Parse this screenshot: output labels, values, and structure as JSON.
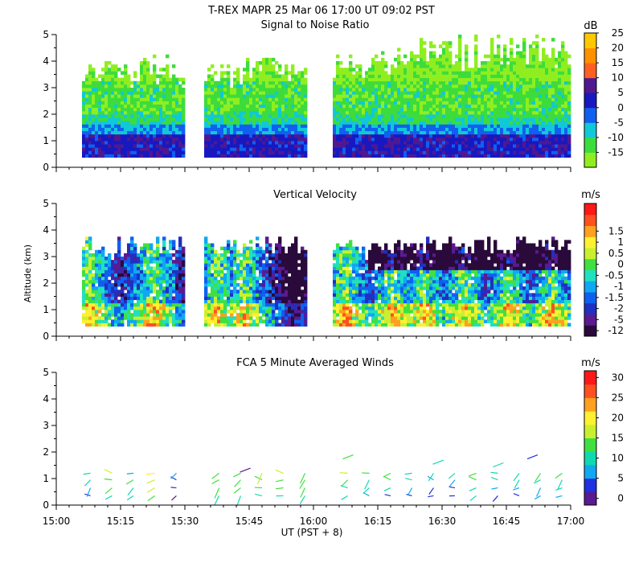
{
  "figure": {
    "title": "T-REX   MAPR 25 Mar 06   17:00 UT   09:02   PST",
    "ylabel": "Altitude (km)",
    "xlabel": "UT   (PST + 8)"
  },
  "colors": {
    "snr": [
      "#90ee20",
      "#3ddc3d",
      "#10c8d8",
      "#1060f0",
      "#1818c0",
      "#501890",
      "#ff6020",
      "#ff9000",
      "#ffc800"
    ],
    "vel": [
      "#2a0a3a",
      "#5a1a90",
      "#2030c0",
      "#1060f0",
      "#10a8f0",
      "#20e0c0",
      "#40e040",
      "#c8f030",
      "#fff030",
      "#ffa020",
      "#ff5020",
      "#ff1818"
    ],
    "wind": [
      "#5a1a90",
      "#2030e0",
      "#10a8f0",
      "#10d8b0",
      "#40e040",
      "#c8f030",
      "#fff030",
      "#ffa020",
      "#ff5020",
      "#ff1818"
    ]
  },
  "chart_data": [
    {
      "type": "heatmap",
      "title": "Signal to Noise Ratio",
      "units": "dB",
      "xlabel": "UT (PST + 8)",
      "ylabel": "Altitude (km)",
      "xlim": [
        15.0,
        17.0
      ],
      "ylim": [
        0,
        5
      ],
      "xticks": [
        "15:00",
        "15:15",
        "15:30",
        "15:45",
        "16:00",
        "16:15",
        "16:30",
        "16:45",
        "17:00"
      ],
      "yticks": [
        "0",
        "1",
        "2",
        "3",
        "4",
        "5"
      ],
      "colorbar_labels": [
        "-15",
        "-10",
        "-5",
        "0",
        "5",
        "10",
        "15",
        "20",
        "25"
      ],
      "data_gaps_hours": [
        [
          15.0,
          15.1
        ],
        [
          15.5,
          15.58
        ],
        [
          15.98,
          16.08
        ]
      ],
      "layers_km": [
        {
          "range": [
            0.4,
            1.2
          ],
          "level": "5 to 10 dB (strong)"
        },
        {
          "range": [
            1.2,
            1.6
          ],
          "level": "0 dB"
        },
        {
          "range": [
            1.6,
            3.6
          ],
          "level": "-5 to -10 dB"
        },
        {
          "range": [
            3.6,
            4.5
          ],
          "level": "-15 dB"
        }
      ]
    },
    {
      "type": "heatmap",
      "title": "Vertical Velocity",
      "units": "m/s",
      "xlabel": "UT (PST + 8)",
      "ylabel": "Altitude (km)",
      "xlim": [
        15.0,
        17.0
      ],
      "ylim": [
        0,
        5
      ],
      "xticks": [
        "15:00",
        "15:15",
        "15:30",
        "15:45",
        "16:00",
        "16:15",
        "16:30",
        "16:45",
        "17:00"
      ],
      "yticks": [
        "0",
        "1",
        "2",
        "3",
        "4",
        "5"
      ],
      "colorbar_labels": [
        "-12",
        "-5",
        "-2",
        "-1.5",
        "-1",
        "-0.5",
        "0",
        "0.5",
        "1",
        "1.5"
      ],
      "data_gaps_hours": [
        [
          15.0,
          15.1
        ],
        [
          15.5,
          15.58
        ],
        [
          15.98,
          16.08
        ]
      ],
      "note": "Updraft (red) columns near 15:10, 15:35, 16:25, 16:55; downdraft (purple) above 2.5 km after 16:15"
    },
    {
      "type": "vector",
      "title": "FCA 5 Minute Averaged Winds",
      "units": "m/s",
      "xlabel": "UT (PST + 8)",
      "ylabel": "Altitude (km)",
      "xlim": [
        15.0,
        17.0
      ],
      "ylim": [
        0,
        5
      ],
      "xticks": [
        "15:00",
        "15:15",
        "15:30",
        "15:45",
        "16:00",
        "16:15",
        "16:30",
        "16:45",
        "17:00"
      ],
      "yticks": [
        "0",
        "1",
        "2",
        "3",
        "4",
        "5"
      ],
      "colorbar_labels": [
        "0",
        "5",
        "10",
        "15",
        "20",
        "25",
        "30"
      ],
      "profiles": [
        {
          "t": 15.133,
          "speeds": [
            6,
            8,
            10,
            12
          ]
        },
        {
          "t": 15.217,
          "speeds": [
            12,
            14,
            15,
            16
          ]
        },
        {
          "t": 15.3,
          "speeds": [
            10,
            12,
            14,
            9
          ]
        },
        {
          "t": 15.383,
          "speeds": [
            14,
            16,
            18,
            20
          ]
        },
        {
          "t": 15.467,
          "speeds": [
            3,
            4,
            6,
            8
          ]
        },
        {
          "t": 15.633,
          "speeds": [
            12,
            14,
            14,
            15
          ]
        },
        {
          "t": 15.717,
          "speeds": [
            11,
            13,
            14,
            15
          ]
        },
        {
          "t": 15.8,
          "speeds": [
            12,
            13,
            14,
            16
          ]
        },
        {
          "t": 15.883,
          "speeds": [
            12,
            14,
            15,
            17
          ]
        },
        {
          "t": 15.967,
          "speeds": [
            11,
            13,
            14,
            15
          ]
        },
        {
          "t": 16.133,
          "speeds": [
            10,
            12,
            14,
            16
          ]
        },
        {
          "t": 16.217,
          "speeds": [
            8,
            10,
            12,
            14
          ]
        },
        {
          "t": 16.3,
          "speeds": [
            6,
            10,
            13,
            15
          ]
        },
        {
          "t": 16.383,
          "speeds": [
            5,
            7,
            10,
            12
          ]
        },
        {
          "t": 16.467,
          "speeds": [
            5,
            6,
            8,
            10
          ]
        },
        {
          "t": 16.55,
          "speeds": [
            4,
            6,
            9,
            11
          ]
        },
        {
          "t": 16.633,
          "speeds": [
            10,
            12,
            14,
            15
          ]
        },
        {
          "t": 16.717,
          "speeds": [
            6,
            8,
            10,
            12
          ]
        },
        {
          "t": 16.8,
          "speeds": [
            5,
            8,
            10,
            12
          ]
        },
        {
          "t": 16.883,
          "speeds": [
            7,
            9,
            11,
            13
          ]
        },
        {
          "t": 16.967,
          "speeds": [
            8,
            10,
            12,
            14
          ]
        }
      ],
      "isolated_barbs": [
        {
          "t": 15.733,
          "alt": 1.3,
          "speed": 3
        },
        {
          "t": 16.133,
          "alt": 1.8,
          "speed": 15
        },
        {
          "t": 16.483,
          "alt": 1.6,
          "speed": 10
        },
        {
          "t": 16.717,
          "alt": 1.5,
          "speed": 10
        },
        {
          "t": 16.85,
          "alt": 1.8,
          "speed": 4
        }
      ]
    }
  ]
}
